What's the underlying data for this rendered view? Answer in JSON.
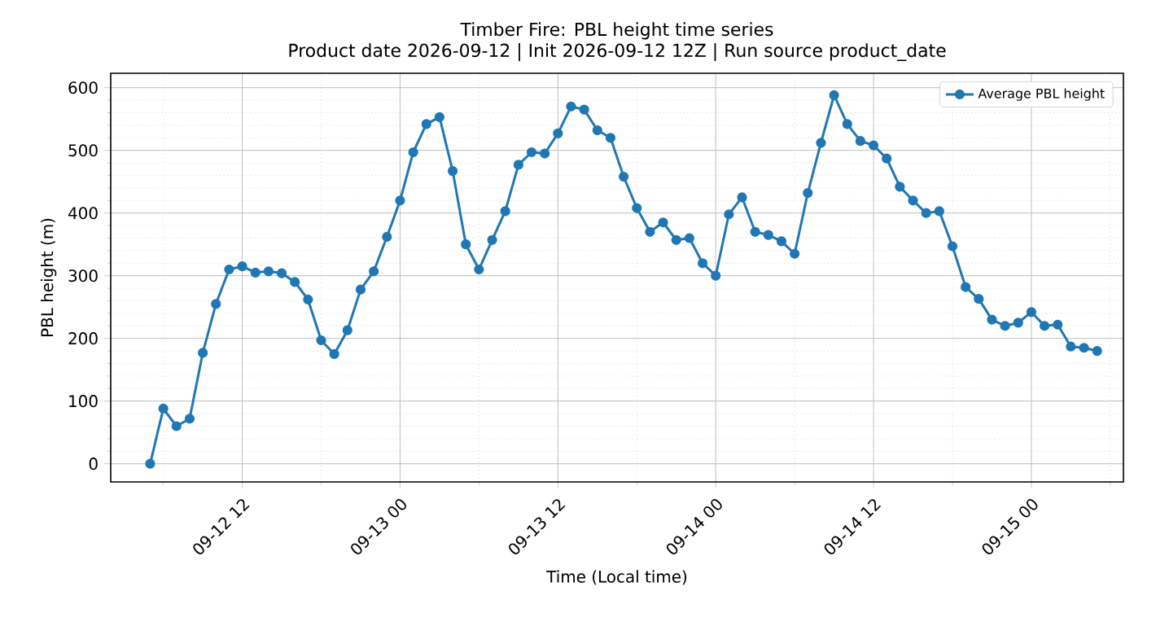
{
  "chart_data": {
    "type": "line",
    "title": "Timber Fire: PBL height time series",
    "subtitle": "Product date 2026-09-12 | Init 2026-09-12 12Z | Run source product_date",
    "xlabel": "Time (Local time)",
    "ylabel": "PBL height (m)",
    "x": [
      "2026-09-12T05:00",
      "2026-09-12T06:00",
      "2026-09-12T07:00",
      "2026-09-12T08:00",
      "2026-09-12T09:00",
      "2026-09-12T10:00",
      "2026-09-12T11:00",
      "2026-09-12T12:00",
      "2026-09-12T13:00",
      "2026-09-12T14:00",
      "2026-09-12T15:00",
      "2026-09-12T16:00",
      "2026-09-12T17:00",
      "2026-09-12T18:00",
      "2026-09-12T19:00",
      "2026-09-12T20:00",
      "2026-09-12T21:00",
      "2026-09-12T22:00",
      "2026-09-12T23:00",
      "2026-09-13T00:00",
      "2026-09-13T01:00",
      "2026-09-13T02:00",
      "2026-09-13T03:00",
      "2026-09-13T04:00",
      "2026-09-13T05:00",
      "2026-09-13T06:00",
      "2026-09-13T07:00",
      "2026-09-13T08:00",
      "2026-09-13T09:00",
      "2026-09-13T10:00",
      "2026-09-13T11:00",
      "2026-09-13T12:00",
      "2026-09-13T13:00",
      "2026-09-13T14:00",
      "2026-09-13T15:00",
      "2026-09-13T16:00",
      "2026-09-13T17:00",
      "2026-09-13T18:00",
      "2026-09-13T19:00",
      "2026-09-13T20:00",
      "2026-09-13T21:00",
      "2026-09-13T22:00",
      "2026-09-13T23:00",
      "2026-09-14T00:00",
      "2026-09-14T01:00",
      "2026-09-14T02:00",
      "2026-09-14T03:00",
      "2026-09-14T04:00",
      "2026-09-14T05:00",
      "2026-09-14T06:00",
      "2026-09-14T07:00",
      "2026-09-14T08:00",
      "2026-09-14T09:00",
      "2026-09-14T10:00",
      "2026-09-14T11:00",
      "2026-09-14T12:00",
      "2026-09-14T13:00",
      "2026-09-14T14:00",
      "2026-09-14T15:00",
      "2026-09-14T16:00",
      "2026-09-14T17:00",
      "2026-09-14T18:00",
      "2026-09-14T19:00",
      "2026-09-14T20:00",
      "2026-09-14T21:00",
      "2026-09-14T22:00",
      "2026-09-14T23:00",
      "2026-09-15T00:00",
      "2026-09-15T01:00",
      "2026-09-15T02:00",
      "2026-09-15T03:00",
      "2026-09-15T04:00",
      "2026-09-15T05:00"
    ],
    "series": [
      {
        "name": "Average PBL height",
        "color": "#1f77b4",
        "values": [
          0,
          88,
          60,
          72,
          177,
          255,
          310,
          315,
          305,
          307,
          304,
          290,
          262,
          197,
          175,
          213,
          278,
          307,
          362,
          420,
          497,
          542,
          553,
          467,
          350,
          310,
          357,
          403,
          477,
          497,
          495,
          527,
          570,
          565,
          532,
          520,
          458,
          408,
          370,
          385,
          357,
          360,
          320,
          300,
          398,
          425,
          370,
          365,
          355,
          335,
          432,
          512,
          588,
          542,
          515,
          508,
          487,
          442,
          420,
          400,
          403,
          347,
          282,
          263,
          230,
          220,
          225,
          242,
          220,
          222,
          187,
          185,
          180
        ]
      }
    ],
    "xlim": [
      "2026-09-12T02:00",
      "2026-09-15T07:00"
    ],
    "xticks": [
      {
        "value": "2026-09-12T06:00",
        "label": null
      },
      {
        "value": "2026-09-12T12:00",
        "label": "09-12 12"
      },
      {
        "value": "2026-09-12T18:00",
        "label": null
      },
      {
        "value": "2026-09-13T00:00",
        "label": "09-13 00"
      },
      {
        "value": "2026-09-13T06:00",
        "label": null
      },
      {
        "value": "2026-09-13T12:00",
        "label": "09-13 12"
      },
      {
        "value": "2026-09-13T18:00",
        "label": null
      },
      {
        "value": "2026-09-14T00:00",
        "label": "09-14 00"
      },
      {
        "value": "2026-09-14T06:00",
        "label": null
      },
      {
        "value": "2026-09-14T12:00",
        "label": "09-14 12"
      },
      {
        "value": "2026-09-14T18:00",
        "label": null
      },
      {
        "value": "2026-09-15T00:00",
        "label": "09-15 00"
      },
      {
        "value": "2026-09-15T06:00",
        "label": null
      }
    ],
    "ylim": [
      -29,
      623
    ],
    "yticks": [
      0,
      {
        "value": 20,
        "label": null
      },
      {
        "value": 40,
        "label": null
      },
      {
        "value": 60,
        "label": null
      },
      {
        "value": 80,
        "label": null
      },
      100,
      {
        "value": 120,
        "label": null
      },
      {
        "value": 140,
        "label": null
      },
      {
        "value": 160,
        "label": null
      },
      {
        "value": 180,
        "label": null
      },
      200,
      {
        "value": 220,
        "label": null
      },
      {
        "value": 240,
        "label": null
      },
      {
        "value": 260,
        "label": null
      },
      {
        "value": 280,
        "label": null
      },
      300,
      {
        "value": 320,
        "label": null
      },
      {
        "value": 340,
        "label": null
      },
      {
        "value": 360,
        "label": null
      },
      {
        "value": 380,
        "label": null
      },
      400,
      {
        "value": 420,
        "label": null
      },
      {
        "value": 440,
        "label": null
      },
      {
        "value": 460,
        "label": null
      },
      {
        "value": 480,
        "label": null
      },
      500,
      {
        "value": 520,
        "label": null
      },
      {
        "value": 540,
        "label": null
      },
      {
        "value": 560,
        "label": null
      },
      {
        "value": 580,
        "label": null
      },
      600
    ],
    "grid": true,
    "legend": "top right",
    "marker": "circle",
    "line_style": "solid"
  }
}
